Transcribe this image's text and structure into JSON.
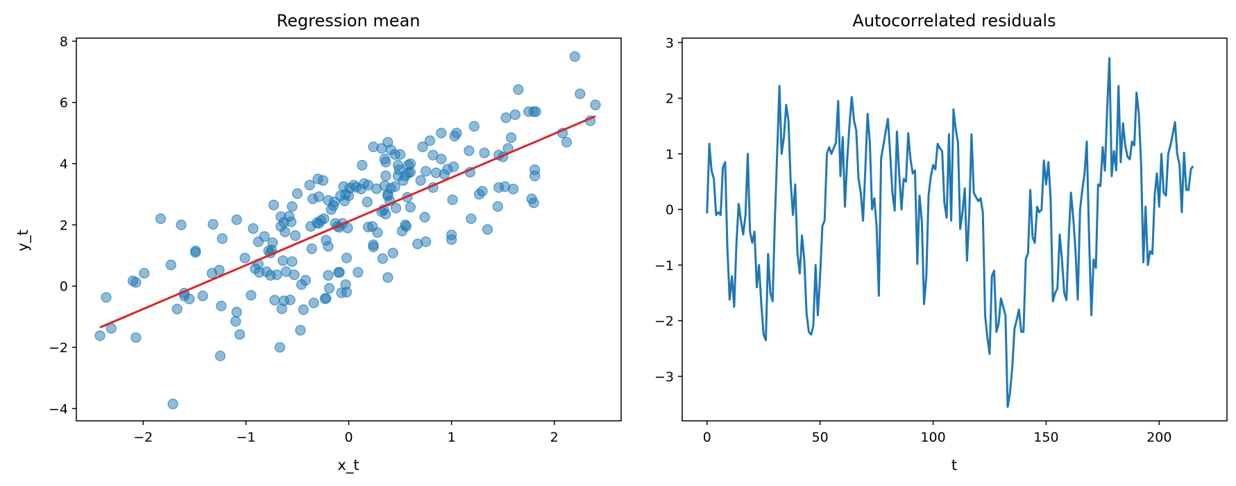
{
  "colors": {
    "scatter": "#1f77b4",
    "fit_line": "#d62728",
    "series_line": "#1f77b4",
    "axes": "#000000",
    "background": "#ffffff"
  },
  "chart_data": [
    {
      "type": "scatter",
      "title": "Regression mean",
      "xlabel": "x_t",
      "ylabel": "y_t",
      "xlim": [
        -2.65,
        2.65
      ],
      "ylim": [
        -4.4,
        8.1
      ],
      "xticks": [
        -2,
        -1,
        0,
        1,
        2
      ],
      "xtick_labels": [
        "−2",
        "−1",
        "0",
        "1",
        "2"
      ],
      "yticks": [
        -4,
        -2,
        0,
        2,
        4,
        6,
        8
      ],
      "ytick_labels": [
        "−4",
        "−2",
        "0",
        "2",
        "4",
        "6",
        "8"
      ],
      "grid": false,
      "marker_alpha": 0.5,
      "points": [
        [
          -2.42,
          -1.62
        ],
        [
          -2.36,
          -0.37
        ],
        [
          -2.31,
          -1.38
        ],
        [
          -2.1,
          0.17
        ],
        [
          -2.07,
          0.12
        ],
        [
          -2.07,
          -1.68
        ],
        [
          -1.99,
          0.42
        ],
        [
          -1.83,
          2.2
        ],
        [
          -1.73,
          0.69
        ],
        [
          -1.71,
          -3.85
        ],
        [
          -1.67,
          -0.75
        ],
        [
          -1.63,
          2.0
        ],
        [
          -1.6,
          -0.23
        ],
        [
          -1.6,
          -0.32
        ],
        [
          -1.55,
          -0.42
        ],
        [
          -1.49,
          1.15
        ],
        [
          -1.49,
          1.1
        ],
        [
          -1.42,
          -0.32
        ],
        [
          -1.32,
          2.02
        ],
        [
          -1.33,
          0.42
        ],
        [
          -1.26,
          0.52
        ],
        [
          -1.25,
          -2.28
        ],
        [
          -1.24,
          -0.65
        ],
        [
          -1.23,
          1.55
        ],
        [
          -1.1,
          -1.15
        ],
        [
          -1.09,
          -0.85
        ],
        [
          -1.09,
          2.17
        ],
        [
          -1.06,
          -1.58
        ],
        [
          -1.01,
          0.92
        ],
        [
          -0.95,
          -0.3
        ],
        [
          -0.93,
          1.88
        ],
        [
          -0.91,
          0.57
        ],
        [
          -0.88,
          1.45
        ],
        [
          -0.88,
          0.72
        ],
        [
          -0.87,
          0.45
        ],
        [
          -0.82,
          1.62
        ],
        [
          -0.8,
          0.47
        ],
        [
          -0.78,
          1.15
        ],
        [
          -0.76,
          1.08
        ],
        [
          -0.76,
          0.35
        ],
        [
          -0.75,
          1.18
        ],
        [
          -0.74,
          1.42
        ],
        [
          -0.73,
          2.65
        ],
        [
          -0.72,
          -0.46
        ],
        [
          -0.7,
          0.37
        ],
        [
          -0.67,
          -2.0
        ],
        [
          -0.66,
          2.27
        ],
        [
          -0.66,
          1.95
        ],
        [
          -0.65,
          -0.74
        ],
        [
          -0.64,
          0.83
        ],
        [
          -0.63,
          -0.48
        ],
        [
          -0.63,
          2.08
        ],
        [
          -0.62,
          1.77
        ],
        [
          -0.61,
          0.47
        ],
        [
          -0.58,
          2.28
        ],
        [
          -0.57,
          -0.45
        ],
        [
          -0.56,
          2.1
        ],
        [
          -0.55,
          0.8
        ],
        [
          -0.55,
          2.6
        ],
        [
          -0.53,
          0.37
        ],
        [
          -0.52,
          1.65
        ],
        [
          -0.5,
          3.02
        ],
        [
          -0.47,
          -1.44
        ],
        [
          -0.46,
          0.05
        ],
        [
          -0.44,
          -0.77
        ],
        [
          -0.42,
          0.19
        ],
        [
          -0.38,
          3.3
        ],
        [
          -0.37,
          1.95
        ],
        [
          -0.36,
          1.22
        ],
        [
          -0.35,
          2.85
        ],
        [
          -0.34,
          -0.55
        ],
        [
          -0.31,
          2.07
        ],
        [
          -0.3,
          3.5
        ],
        [
          -0.29,
          2.92
        ],
        [
          -0.29,
          2.05
        ],
        [
          -0.27,
          2.15
        ],
        [
          -0.25,
          3.45
        ],
        [
          -0.24,
          2.2
        ],
        [
          -0.23,
          -0.41
        ],
        [
          -0.22,
          -0.4
        ],
        [
          -0.22,
          1.5
        ],
        [
          -0.2,
          0.35
        ],
        [
          -0.2,
          1.3
        ],
        [
          -0.2,
          2.8
        ],
        [
          -0.19,
          -0.07
        ],
        [
          -0.17,
          2.5
        ],
        [
          -0.15,
          2.63
        ],
        [
          -0.14,
          2.75
        ],
        [
          -0.13,
          2.05
        ],
        [
          -0.11,
          1.95
        ],
        [
          -0.1,
          0.45
        ],
        [
          -0.09,
          0.45
        ],
        [
          -0.09,
          1.92
        ],
        [
          -0.08,
          2.95
        ],
        [
          -0.07,
          -0.22
        ],
        [
          -0.06,
          2.05
        ],
        [
          -0.05,
          3.25
        ],
        [
          -0.04,
          2.78
        ],
        [
          -0.03,
          0.05
        ],
        [
          -0.03,
          3.0
        ],
        [
          -0.02,
          0.92
        ],
        [
          -0.02,
          -0.2
        ],
        [
          -0.01,
          1.9
        ],
        [
          0.0,
          2.95
        ],
        [
          0.01,
          3.2
        ],
        [
          0.05,
          3.3
        ],
        [
          0.07,
          3.23
        ],
        [
          0.09,
          0.45
        ],
        [
          0.12,
          3.17
        ],
        [
          0.13,
          3.95
        ],
        [
          0.15,
          3.35
        ],
        [
          0.18,
          2.75
        ],
        [
          0.19,
          3.3
        ],
        [
          0.19,
          1.93
        ],
        [
          0.23,
          1.95
        ],
        [
          0.24,
          1.28
        ],
        [
          0.24,
          4.55
        ],
        [
          0.24,
          1.35
        ],
        [
          0.27,
          3.18
        ],
        [
          0.28,
          1.75
        ],
        [
          0.32,
          2.43
        ],
        [
          0.32,
          4.5
        ],
        [
          0.33,
          0.9
        ],
        [
          0.34,
          2.5
        ],
        [
          0.35,
          3.28
        ],
        [
          0.35,
          4.15
        ],
        [
          0.36,
          3.6
        ],
        [
          0.36,
          2.35
        ],
        [
          0.36,
          4.05
        ],
        [
          0.38,
          2.95
        ],
        [
          0.38,
          4.7
        ],
        [
          0.38,
          0.28
        ],
        [
          0.38,
          3.0
        ],
        [
          0.4,
          2.78
        ],
        [
          0.41,
          3.2
        ],
        [
          0.41,
          4.45
        ],
        [
          0.43,
          1.08
        ],
        [
          0.45,
          3.25
        ],
        [
          0.45,
          4.3
        ],
        [
          0.46,
          2.55
        ],
        [
          0.48,
          3.6
        ],
        [
          0.48,
          3.95
        ],
        [
          0.49,
          3.8
        ],
        [
          0.5,
          4.3
        ],
        [
          0.52,
          1.8
        ],
        [
          0.53,
          3.45
        ],
        [
          0.55,
          3.6
        ],
        [
          0.55,
          2.0
        ],
        [
          0.56,
          1.95
        ],
        [
          0.57,
          2.9
        ],
        [
          0.58,
          3.7
        ],
        [
          0.58,
          3.95
        ],
        [
          0.6,
          3.72
        ],
        [
          0.6,
          2.58
        ],
        [
          0.6,
          4.0
        ],
        [
          0.67,
          1.38
        ],
        [
          0.7,
          3.45
        ],
        [
          0.72,
          4.55
        ],
        [
          0.74,
          2.25
        ],
        [
          0.75,
          3.75
        ],
        [
          0.75,
          1.45
        ],
        [
          0.79,
          4.75
        ],
        [
          0.82,
          4.28
        ],
        [
          0.82,
          3.22
        ],
        [
          0.85,
          3.7
        ],
        [
          0.9,
          4.15
        ],
        [
          0.9,
          5.0
        ],
        [
          0.93,
          3.65
        ],
        [
          0.96,
          3.82
        ],
        [
          1.0,
          1.67
        ],
        [
          1.0,
          1.52
        ],
        [
          1.01,
          2.82
        ],
        [
          1.02,
          3.9
        ],
        [
          1.03,
          4.9
        ],
        [
          1.05,
          5.0
        ],
        [
          1.17,
          4.42
        ],
        [
          1.18,
          3.72
        ],
        [
          1.19,
          2.2
        ],
        [
          1.22,
          5.22
        ],
        [
          1.27,
          3.0
        ],
        [
          1.3,
          3.1
        ],
        [
          1.32,
          4.35
        ],
        [
          1.35,
          1.85
        ],
        [
          1.45,
          2.6
        ],
        [
          1.46,
          3.22
        ],
        [
          1.46,
          4.28
        ],
        [
          1.5,
          4.22
        ],
        [
          1.52,
          3.25
        ],
        [
          1.53,
          5.5
        ],
        [
          1.55,
          4.5
        ],
        [
          1.58,
          4.85
        ],
        [
          1.6,
          3.17
        ],
        [
          1.62,
          5.6
        ],
        [
          1.65,
          6.42
        ],
        [
          1.75,
          5.7
        ],
        [
          1.78,
          2.85
        ],
        [
          1.8,
          2.72
        ],
        [
          1.8,
          5.7
        ],
        [
          1.81,
          3.6
        ],
        [
          1.82,
          5.7
        ],
        [
          1.81,
          3.8
        ],
        [
          2.08,
          5.0
        ],
        [
          2.12,
          4.7
        ],
        [
          2.2,
          7.5
        ],
        [
          2.25,
          6.28
        ],
        [
          2.35,
          5.4
        ],
        [
          2.4,
          5.92
        ]
      ],
      "fit_line": {
        "x": [
          -2.42,
          2.4
        ],
        "y": [
          -1.35,
          5.55
        ]
      }
    },
    {
      "type": "line",
      "title": "Autocorrelated residuals",
      "xlabel": "t",
      "ylabel": "",
      "xlim": [
        -11,
        230
      ],
      "ylim": [
        -3.8,
        3.08
      ],
      "xticks": [
        0,
        50,
        100,
        150,
        200
      ],
      "xtick_labels": [
        "0",
        "50",
        "100",
        "150",
        "200"
      ],
      "yticks": [
        -3,
        -2,
        -1,
        0,
        1,
        2,
        3
      ],
      "ytick_labels": [
        "−3",
        "−2",
        "−1",
        "0",
        "1",
        "2",
        "3"
      ],
      "grid": false,
      "x_start": 0,
      "x_step": 1,
      "values": [
        -0.07,
        1.18,
        0.7,
        0.55,
        -0.1,
        -0.05,
        -0.1,
        0.75,
        0.85,
        -0.7,
        -1.62,
        -1.2,
        -1.75,
        -0.6,
        0.1,
        -0.2,
        -0.45,
        -0.1,
        1.0,
        -0.4,
        -0.6,
        -0.4,
        -1.4,
        -1.0,
        -1.7,
        -2.25,
        -2.35,
        -0.8,
        -1.5,
        -1.65,
        -0.2,
        1.0,
        2.22,
        1.0,
        1.3,
        1.88,
        1.6,
        0.5,
        -0.1,
        0.45,
        -0.8,
        -1.15,
        -0.47,
        -0.9,
        -1.85,
        -2.2,
        -2.25,
        -2.1,
        -1.0,
        -1.9,
        -1.2,
        -0.3,
        -0.2,
        1.0,
        1.12,
        1.0,
        1.1,
        1.2,
        1.95,
        0.6,
        1.3,
        0.05,
        0.9,
        1.5,
        2.02,
        1.6,
        1.42,
        0.55,
        0.3,
        -0.2,
        0.7,
        1.72,
        1.2,
        0.0,
        0.2,
        -0.3,
        -1.55,
        0.92,
        1.15,
        1.4,
        1.63,
        1.0,
        0.3,
        -0.02,
        1.4,
        0.65,
        0.0,
        0.55,
        0.5,
        1.37,
        0.9,
        0.65,
        0.7,
        -0.98,
        0.25,
        -0.2,
        -1.7,
        -1.2,
        0.25,
        0.6,
        0.8,
        0.72,
        1.18,
        1.1,
        1.05,
        0.12,
        -0.15,
        1.35,
        -0.2,
        1.8,
        1.45,
        1.2,
        -0.35,
        -0.05,
        0.38,
        -0.92,
        -0.05,
        1.35,
        0.3,
        0.22,
        0.15,
        0.2,
        -0.05,
        -1.9,
        -2.3,
        -2.6,
        -1.2,
        -1.1,
        -2.2,
        -2.05,
        -1.6,
        -1.75,
        -1.9,
        -3.55,
        -3.3,
        -2.85,
        -2.15,
        -1.98,
        -1.8,
        -2.2,
        -2.2,
        -0.9,
        -0.78,
        0.35,
        -0.5,
        -0.6,
        0.05,
        -0.05,
        0.0,
        0.88,
        0.45,
        0.85,
        0.2,
        -1.65,
        -1.5,
        -1.42,
        -0.45,
        -0.9,
        -1.5,
        -1.63,
        -0.5,
        0.3,
        -0.15,
        -0.75,
        -1.62,
        0.0,
        0.35,
        0.65,
        1.22,
        -0.5,
        -1.9,
        -0.9,
        -1.05,
        0.45,
        0.42,
        1.12,
        0.7,
        1.82,
        2.72,
        0.6,
        1.05,
        0.7,
        2.22,
        0.85,
        1.55,
        1.15,
        0.95,
        0.9,
        1.22,
        1.15,
        2.1,
        1.72,
        0.85,
        -0.95,
        0.05,
        -1.0,
        -0.75,
        -0.8,
        0.25,
        0.65,
        0.05,
        1.0,
        0.3,
        0.25,
        1.0,
        1.15,
        1.35,
        1.57,
        1.0,
        0.8,
        -0.05,
        1.02,
        0.35,
        0.35,
        0.72,
        0.78
      ]
    }
  ]
}
